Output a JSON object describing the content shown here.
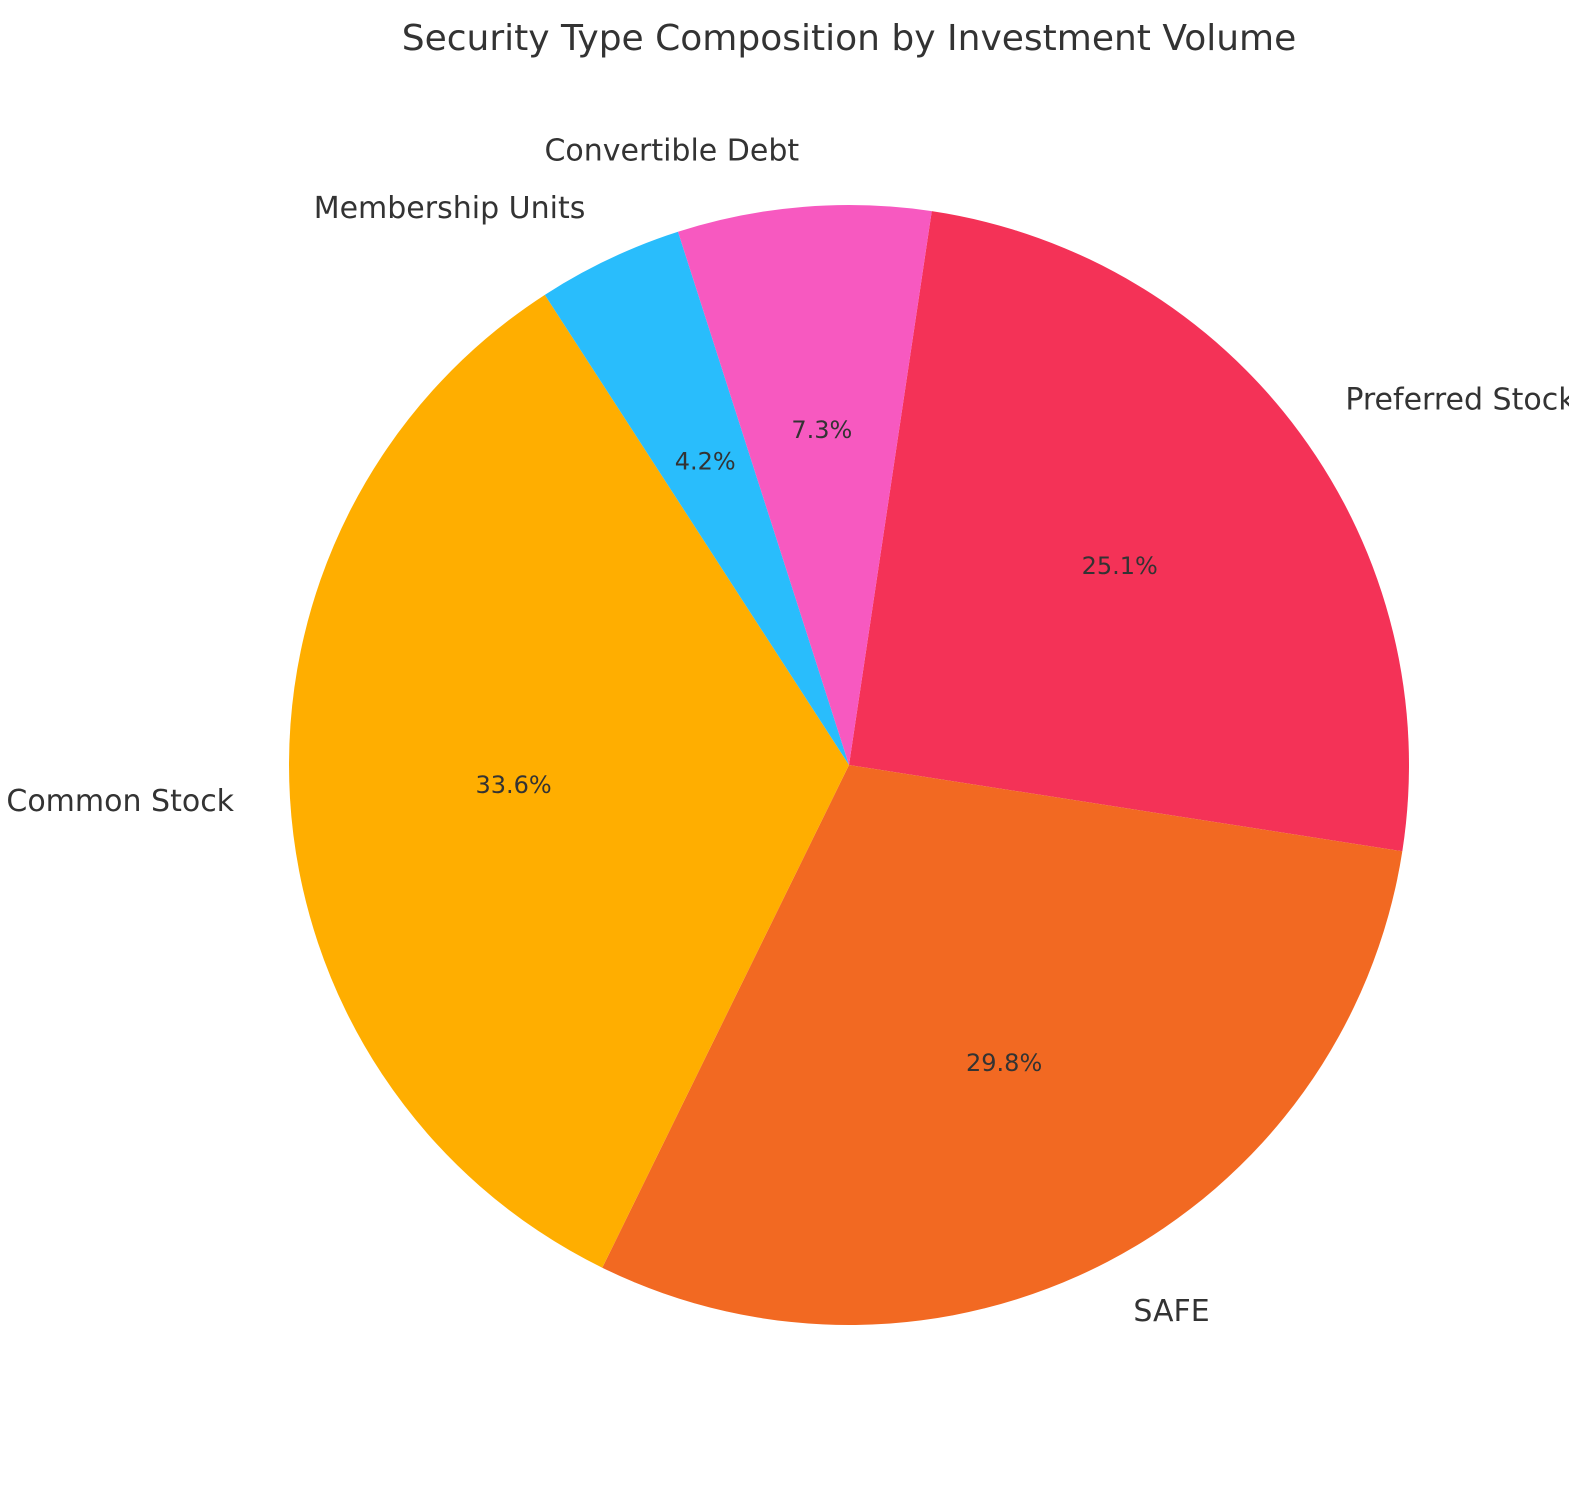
{
  "chart_data": {
    "type": "pie",
    "title": "Security Type Composition by Investment Volume",
    "start_angle_deg": -81.5,
    "direction": "clockwise",
    "slices": [
      {
        "label": "Preferred Stock",
        "value": 25.1,
        "pct_label": "25.1%",
        "color": "#F43257"
      },
      {
        "label": "SAFE",
        "value": 29.8,
        "pct_label": "29.8%",
        "color": "#F26922"
      },
      {
        "label": "Common Stock",
        "value": 33.6,
        "pct_label": "33.6%",
        "color": "#FFAE00"
      },
      {
        "label": "Membership Units",
        "value": 4.2,
        "pct_label": "4.2%",
        "color": "#29BDFC"
      },
      {
        "label": "Convertible Debt",
        "value": 7.3,
        "pct_label": "7.3%",
        "color": "#F759C0"
      }
    ]
  }
}
